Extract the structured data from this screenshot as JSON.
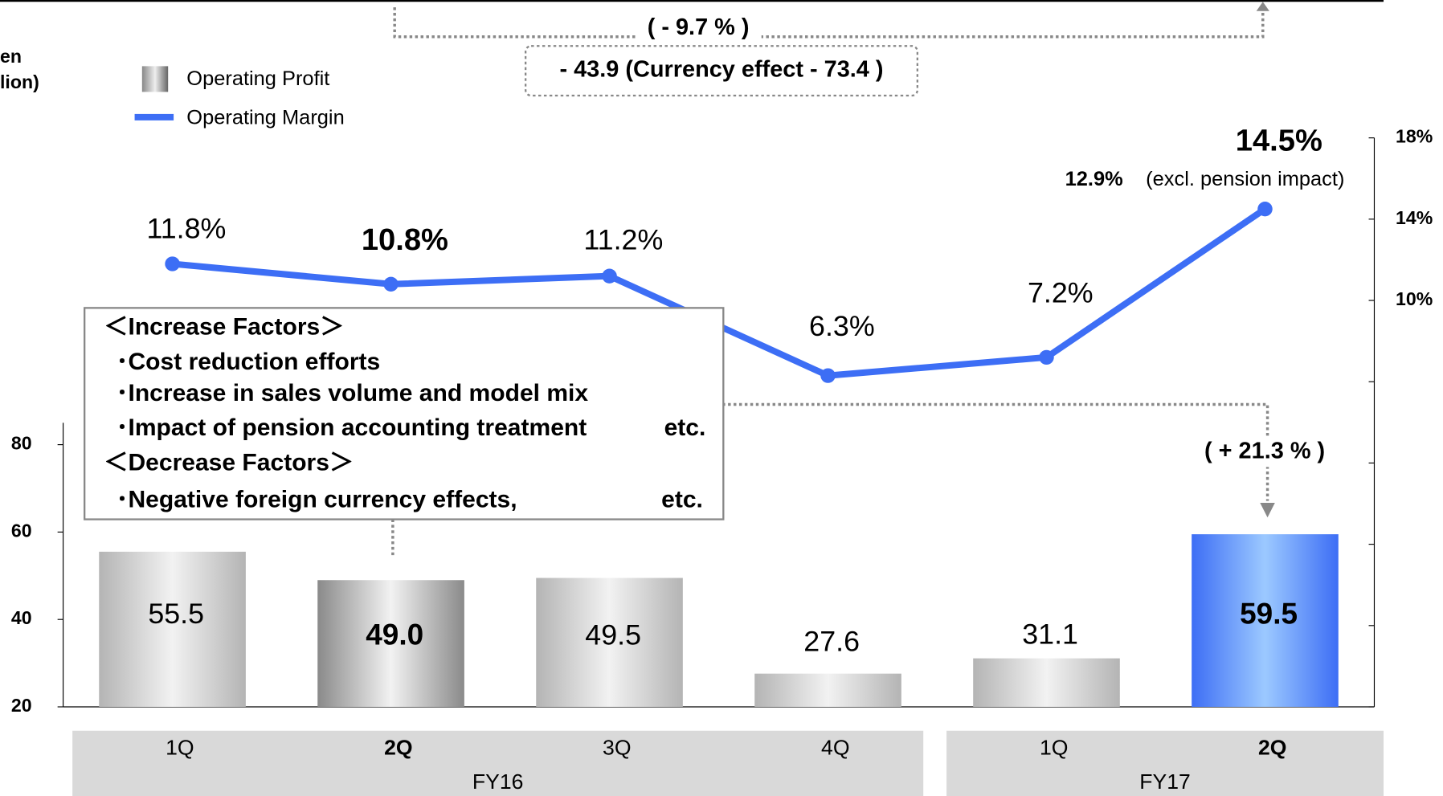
{
  "chart_data": {
    "type": "bar-line",
    "y_label": [
      "en",
      "lion)"
    ],
    "categories": [
      "1Q",
      "2Q",
      "3Q",
      "4Q",
      "1Q",
      "2Q"
    ],
    "groups": [
      {
        "label": "FY16",
        "span": [
          0,
          3
        ]
      },
      {
        "label": "FY17",
        "span": [
          4,
          5
        ]
      }
    ],
    "highlight": [
      1,
      5
    ],
    "series": [
      {
        "name": "Operating Profit",
        "type": "bar",
        "colors": [
          "#b4b4b4",
          "#8a8a8a",
          "#b4b4b4",
          "#b4b4b4",
          "#b4b4b4",
          "#3d6ef5"
        ],
        "values": [
          55.5,
          49.0,
          49.5,
          27.6,
          31.1,
          59.5
        ],
        "value_labels": [
          "55.5",
          "49.0",
          "49.5",
          "27.6",
          "31.1",
          "59.5"
        ]
      },
      {
        "name": "Operating Margin",
        "type": "line",
        "axis": "y2",
        "color": "#3d6ef5",
        "values": [
          11.8,
          10.8,
          11.2,
          6.3,
          7.2,
          14.5
        ],
        "value_labels": [
          "11.8%",
          "10.8%",
          "11.2%",
          "6.3%",
          "7.2%",
          "14.5%"
        ]
      }
    ],
    "ylim": [
      20,
      85
    ],
    "yticks": [
      20,
      40,
      60,
      80
    ],
    "y2lim": [
      -10,
      18
    ],
    "y2ticks": [
      {
        "value": 10,
        "label": "10%"
      },
      {
        "value": 14,
        "label": "14%"
      },
      {
        "value": 18,
        "label": "18%"
      }
    ],
    "y2minor_ticks": [
      -10,
      -6,
      -2,
      2,
      6
    ],
    "annotations": {
      "top_change": "( - 9.7 % )",
      "currency": "- 43.9 (Currency effect - 73.4  )",
      "excl_value": "12.9%",
      "excl_text": "(excl. pension impact)",
      "bottom_change": "(  + 21.3 % )"
    },
    "factors": {
      "increase_title": "＜Increase Factors＞",
      "increase": [
        "･Cost reduction efforts",
        "･Increase in sales volume and model mix",
        "･Impact of pension accounting treatment"
      ],
      "increase_etc": "etc.",
      "decrease_title": "＜Decrease Factors＞",
      "decrease": [
        "･Negative foreign currency effects,"
      ],
      "decrease_etc": "etc."
    }
  }
}
